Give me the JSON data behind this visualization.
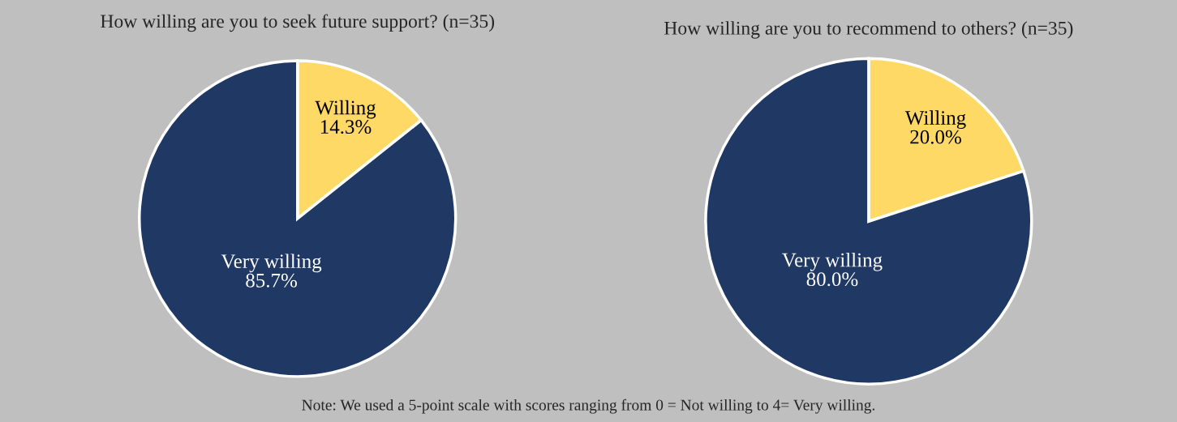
{
  "chart_data": [
    {
      "type": "pie",
      "title": "How willing are you to seek future support? (n=35)",
      "categories": [
        "Willing",
        "Very willing"
      ],
      "values": [
        14.3,
        85.7
      ],
      "colors": [
        "#ffd966",
        "#203864"
      ],
      "value_labels": [
        "14.3%",
        "85.7%"
      ],
      "annotations": [
        "Note: We used a 5-point scale with scores ranging from 0 = Not willing to 4= Very willing."
      ]
    },
    {
      "type": "pie",
      "title": "How willing are you to recommend to others? (n=35)",
      "categories": [
        "Willing",
        "Very willing"
      ],
      "values": [
        20.0,
        80.0
      ],
      "colors": [
        "#ffd966",
        "#203864"
      ],
      "value_labels": [
        "20.0%",
        "80.0%"
      ]
    }
  ]
}
